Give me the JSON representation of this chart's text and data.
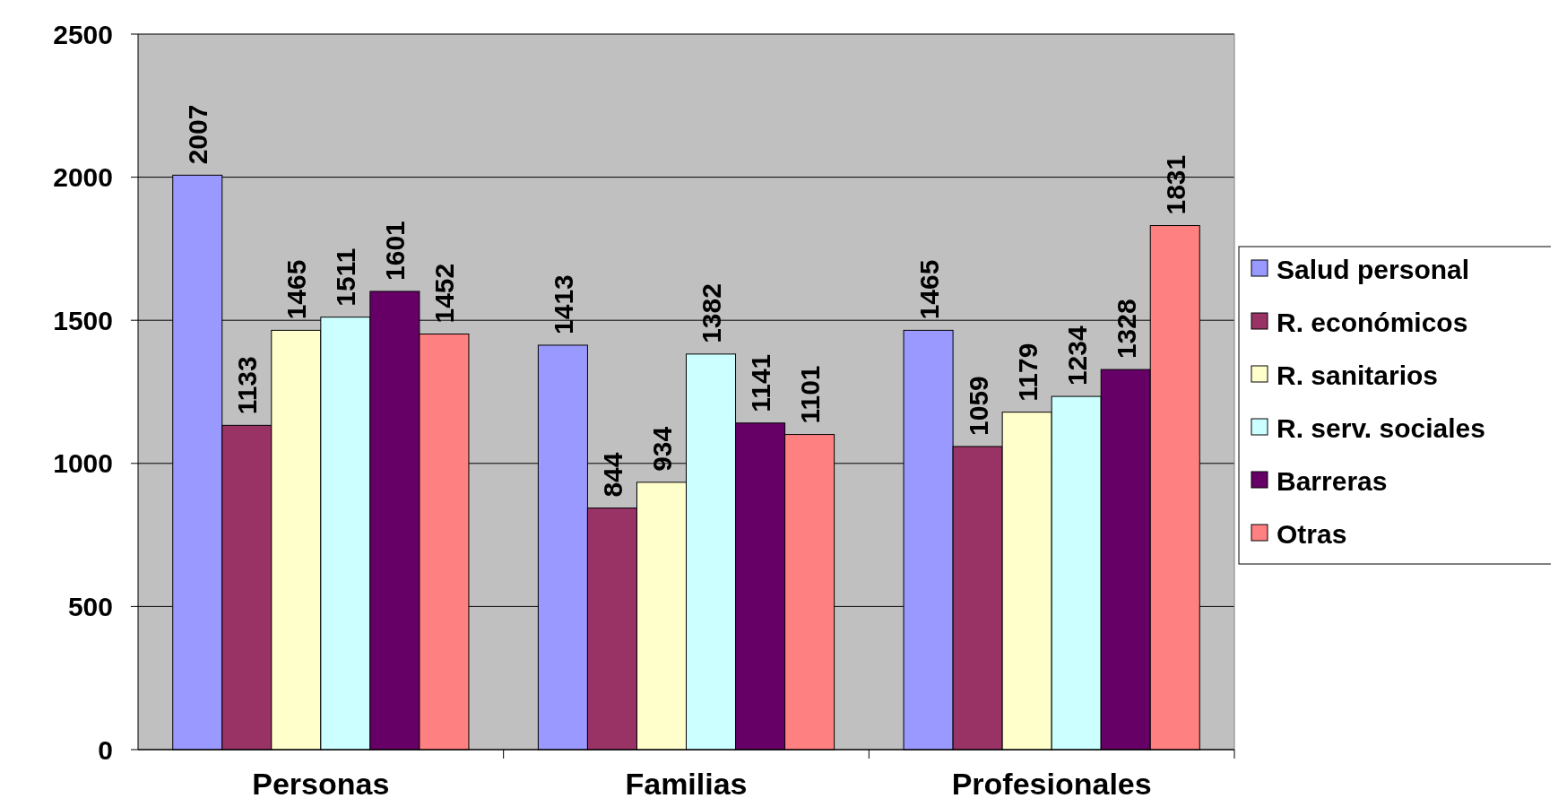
{
  "chart_data": {
    "type": "bar",
    "categories": [
      "Personas",
      "Familias",
      "Profesionales"
    ],
    "series": [
      {
        "name": "Salud personal",
        "color": "#9999ff",
        "values": [
          2007,
          1413,
          1465
        ]
      },
      {
        "name": "R. económicos",
        "color": "#993366",
        "values": [
          1133,
          844,
          1059
        ]
      },
      {
        "name": "R. sanitarios",
        "color": "#ffffcc",
        "values": [
          1465,
          934,
          1179
        ]
      },
      {
        "name": "R. serv. sociales",
        "color": "#ccffff",
        "values": [
          1511,
          1382,
          1234
        ]
      },
      {
        "name": "Barreras",
        "color": "#660066",
        "values": [
          1601,
          1141,
          1328
        ]
      },
      {
        "name": "Otras",
        "color": "#ff8080",
        "values": [
          1452,
          1101,
          1831
        ]
      }
    ],
    "ylim": [
      0,
      2500
    ],
    "yticks": [
      0,
      500,
      1000,
      1500,
      2000,
      2500
    ],
    "grid": "y",
    "legend": "right",
    "data_labels": true
  }
}
